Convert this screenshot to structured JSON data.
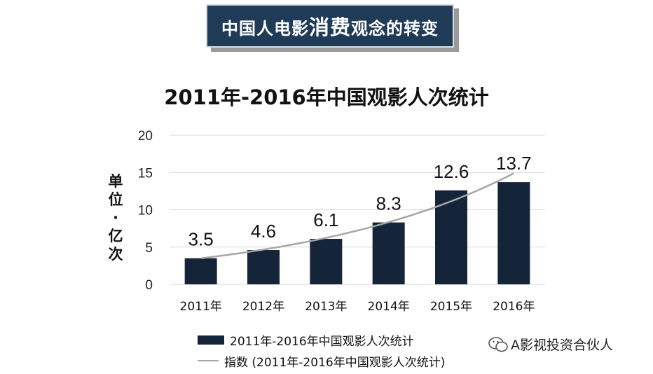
{
  "banner": {
    "prefix": "中国人电影",
    "emphasis": "消费",
    "suffix": "观念的转变"
  },
  "chart_data": {
    "type": "bar",
    "title": "2011年-2016年中国观影人次统计",
    "ylabel": "单位·亿次",
    "ylabel_lines": [
      "单",
      "位",
      "·",
      "亿",
      "次"
    ],
    "xlabel": "",
    "categories": [
      "2011年",
      "2012年",
      "2013年",
      "2014年",
      "2015年",
      "2016年"
    ],
    "values": [
      3.5,
      4.6,
      6.1,
      8.3,
      12.6,
      13.7
    ],
    "data_labels": [
      "3.5",
      "4.6",
      "6.1",
      "8.3",
      "12.6",
      "13.7"
    ],
    "ylim": [
      0,
      20
    ],
    "yticks": [
      0,
      5,
      10,
      15,
      20
    ],
    "ytick_labels": [
      "0",
      "5",
      "10",
      "15",
      "20"
    ],
    "grid": true,
    "trendline": {
      "type": "exponential",
      "name": "指数 (2011年-2016年中国观影人次统计)"
    },
    "legend": [
      {
        "name": "2011年-2016年中国观影人次统计",
        "kind": "bar"
      },
      {
        "name": "指数 (2011年-2016年中国观影人次统计)",
        "kind": "line"
      }
    ],
    "legend_position": "bottom-left",
    "colors": {
      "bar": "#14253a",
      "trend": "#a6a6a6",
      "grid": "#d9d9d9"
    }
  },
  "watermark": {
    "text": "A影视投资合伙人",
    "icon": "wechat-icon"
  }
}
